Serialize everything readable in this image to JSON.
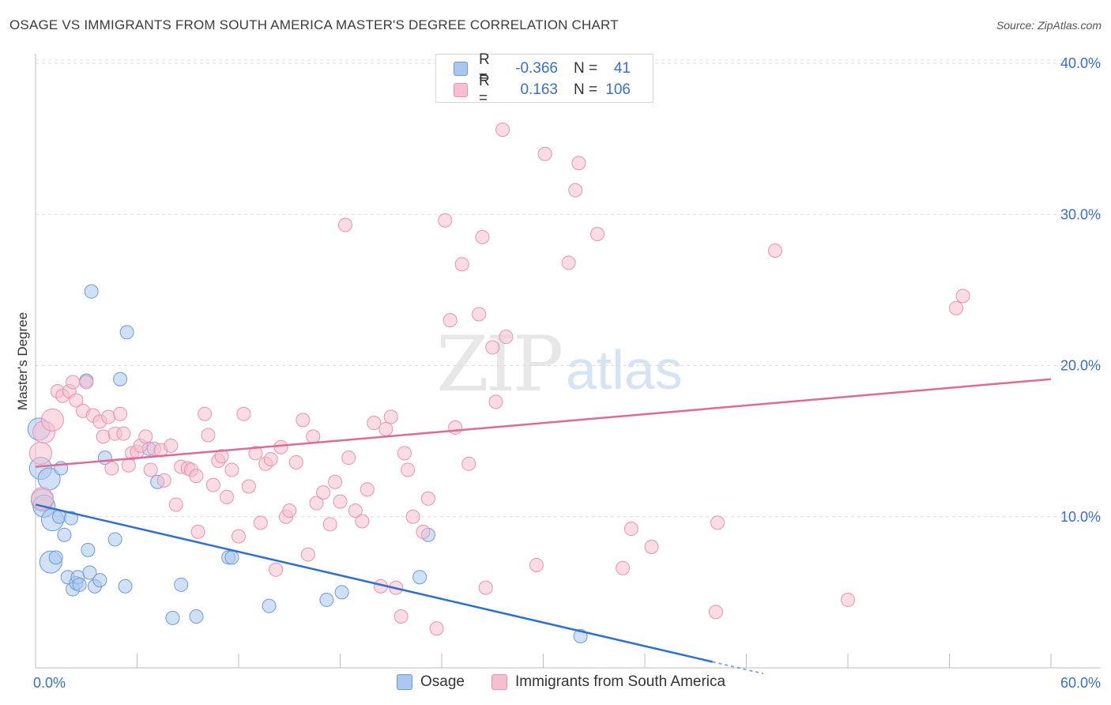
{
  "header": {
    "title": "OSAGE VS IMMIGRANTS FROM SOUTH AMERICA MASTER'S DEGREE CORRELATION CHART",
    "source": "Source: ZipAtlas.com"
  },
  "watermark": {
    "part1": "ZIP",
    "part2": "atlas"
  },
  "legend_top": {
    "rows": [
      {
        "r_label": "R =",
        "r_value": "-0.366",
        "n_label": "N =",
        "n_value": "41"
      },
      {
        "r_label": "R =",
        "r_value": "0.163",
        "n_label": "N =",
        "n_value": "106"
      }
    ]
  },
  "legend_bottom": {
    "items": [
      "Osage",
      "Immigrants from South America"
    ]
  },
  "colors": {
    "blue_fill": "#aac8ef",
    "blue_stroke": "#6d9ad6",
    "blue_line": "#2f6fd1",
    "pink_fill": "#f6bfd0",
    "pink_stroke": "#e793ae",
    "pink_line": "#e06a95",
    "tick_label": "#3a6fc4",
    "grid": "#dcdcdc"
  },
  "chart_data": {
    "type": "scatter",
    "title": "OSAGE VS IMMIGRANTS FROM SOUTH AMERICA MASTER'S DEGREE CORRELATION CHART",
    "xlabel": "",
    "ylabel": "Master's Degree",
    "xlim": [
      0,
      60
    ],
    "ylim": [
      0,
      40
    ],
    "x_tick_labels": [
      "0.0%",
      "60.0%"
    ],
    "y_ticks": [
      10,
      20,
      30,
      40
    ],
    "y_tick_labels": [
      "10.0%",
      "20.0%",
      "30.0%",
      "40.0%"
    ],
    "grid": "horizontal dashed",
    "legend_position": "top-center",
    "series": [
      {
        "name": "Osage",
        "r": -0.366,
        "n": 41,
        "trend": {
          "x": [
            0,
            40
          ],
          "y": [
            10.8,
            0.4
          ]
        },
        "points": [
          [
            0.2,
            15.8
          ],
          [
            0.3,
            13.2
          ],
          [
            0.4,
            11.1
          ],
          [
            0.5,
            10.7
          ],
          [
            0.8,
            12.5
          ],
          [
            0.9,
            7.0
          ],
          [
            1.0,
            9.8
          ],
          [
            1.2,
            7.3
          ],
          [
            1.4,
            10.0
          ],
          [
            1.5,
            13.2
          ],
          [
            1.7,
            8.8
          ],
          [
            1.9,
            6.0
          ],
          [
            2.1,
            9.9
          ],
          [
            2.2,
            5.2
          ],
          [
            2.4,
            5.6
          ],
          [
            2.5,
            6.0
          ],
          [
            2.6,
            5.5
          ],
          [
            3.0,
            19.0
          ],
          [
            3.1,
            7.8
          ],
          [
            3.2,
            6.3
          ],
          [
            3.5,
            5.4
          ],
          [
            3.8,
            5.8
          ],
          [
            3.3,
            24.9
          ],
          [
            4.1,
            13.9
          ],
          [
            4.7,
            8.5
          ],
          [
            5.0,
            19.1
          ],
          [
            5.3,
            5.4
          ],
          [
            5.4,
            22.2
          ],
          [
            6.7,
            14.5
          ],
          [
            7.2,
            12.3
          ],
          [
            8.1,
            3.3
          ],
          [
            8.6,
            5.5
          ],
          [
            9.5,
            3.4
          ],
          [
            11.4,
            7.3
          ],
          [
            11.6,
            7.3
          ],
          [
            13.8,
            4.1
          ],
          [
            17.2,
            4.5
          ],
          [
            18.1,
            5.0
          ],
          [
            22.7,
            6.0
          ],
          [
            23.2,
            8.8
          ],
          [
            32.2,
            2.1
          ]
        ]
      },
      {
        "name": "Immigrants from South America",
        "r": 0.163,
        "n": 106,
        "trend": {
          "x": [
            0,
            60
          ],
          "y": [
            13.3,
            19.1
          ]
        },
        "points": [
          [
            0.3,
            14.2
          ],
          [
            0.4,
            11.2
          ],
          [
            0.5,
            15.6
          ],
          [
            1.0,
            16.4
          ],
          [
            1.3,
            18.3
          ],
          [
            1.6,
            18.0
          ],
          [
            2.0,
            18.3
          ],
          [
            2.2,
            18.9
          ],
          [
            2.4,
            17.7
          ],
          [
            2.8,
            17.0
          ],
          [
            3.0,
            18.9
          ],
          [
            3.4,
            16.7
          ],
          [
            3.8,
            16.3
          ],
          [
            4.0,
            15.3
          ],
          [
            4.3,
            16.6
          ],
          [
            4.5,
            13.2
          ],
          [
            4.7,
            15.5
          ],
          [
            5.0,
            16.8
          ],
          [
            5.2,
            15.5
          ],
          [
            5.5,
            13.4
          ],
          [
            5.7,
            14.2
          ],
          [
            6.0,
            14.3
          ],
          [
            6.2,
            14.7
          ],
          [
            6.5,
            15.3
          ],
          [
            6.8,
            13.1
          ],
          [
            7.0,
            14.5
          ],
          [
            7.4,
            14.4
          ],
          [
            7.6,
            12.4
          ],
          [
            8.0,
            14.7
          ],
          [
            8.3,
            10.8
          ],
          [
            8.6,
            13.3
          ],
          [
            9.0,
            13.2
          ],
          [
            9.2,
            13.1
          ],
          [
            9.5,
            12.7
          ],
          [
            9.6,
            9.0
          ],
          [
            10.0,
            16.8
          ],
          [
            10.2,
            15.4
          ],
          [
            10.5,
            12.1
          ],
          [
            10.8,
            13.7
          ],
          [
            11.0,
            14.0
          ],
          [
            11.3,
            11.3
          ],
          [
            11.6,
            13.1
          ],
          [
            12.0,
            8.7
          ],
          [
            12.3,
            16.8
          ],
          [
            12.6,
            12.0
          ],
          [
            13.0,
            14.2
          ],
          [
            13.3,
            9.6
          ],
          [
            13.6,
            13.5
          ],
          [
            13.9,
            13.8
          ],
          [
            14.2,
            6.5
          ],
          [
            14.5,
            14.6
          ],
          [
            14.8,
            10.0
          ],
          [
            15.0,
            10.4
          ],
          [
            15.4,
            13.6
          ],
          [
            15.8,
            16.4
          ],
          [
            16.1,
            7.5
          ],
          [
            16.4,
            15.3
          ],
          [
            16.6,
            10.9
          ],
          [
            17.0,
            11.6
          ],
          [
            17.4,
            9.5
          ],
          [
            17.7,
            12.3
          ],
          [
            18.0,
            11.0
          ],
          [
            18.3,
            29.3
          ],
          [
            18.5,
            13.9
          ],
          [
            18.9,
            10.4
          ],
          [
            19.3,
            9.7
          ],
          [
            19.6,
            11.8
          ],
          [
            20.0,
            16.2
          ],
          [
            20.4,
            5.4
          ],
          [
            20.7,
            15.8
          ],
          [
            21.0,
            16.6
          ],
          [
            21.3,
            5.3
          ],
          [
            21.6,
            3.4
          ],
          [
            21.8,
            14.2
          ],
          [
            22.0,
            13.1
          ],
          [
            22.3,
            10.0
          ],
          [
            22.9,
            9.0
          ],
          [
            23.2,
            11.2
          ],
          [
            23.7,
            2.6
          ],
          [
            24.2,
            29.6
          ],
          [
            24.5,
            23.0
          ],
          [
            24.8,
            15.9
          ],
          [
            25.2,
            26.7
          ],
          [
            25.6,
            13.5
          ],
          [
            26.2,
            23.4
          ],
          [
            26.4,
            28.5
          ],
          [
            26.6,
            5.3
          ],
          [
            27.0,
            21.2
          ],
          [
            27.2,
            17.6
          ],
          [
            27.6,
            35.6
          ],
          [
            27.8,
            21.9
          ],
          [
            29.6,
            6.8
          ],
          [
            30.1,
            34.0
          ],
          [
            31.5,
            26.8
          ],
          [
            31.9,
            31.6
          ],
          [
            32.1,
            33.4
          ],
          [
            33.2,
            28.7
          ],
          [
            34.7,
            6.6
          ],
          [
            35.2,
            9.2
          ],
          [
            36.4,
            8.0
          ],
          [
            40.2,
            3.7
          ],
          [
            40.3,
            9.6
          ],
          [
            43.7,
            27.6
          ],
          [
            48.0,
            4.5
          ],
          [
            54.4,
            23.8
          ],
          [
            54.8,
            24.6
          ]
        ]
      }
    ]
  }
}
